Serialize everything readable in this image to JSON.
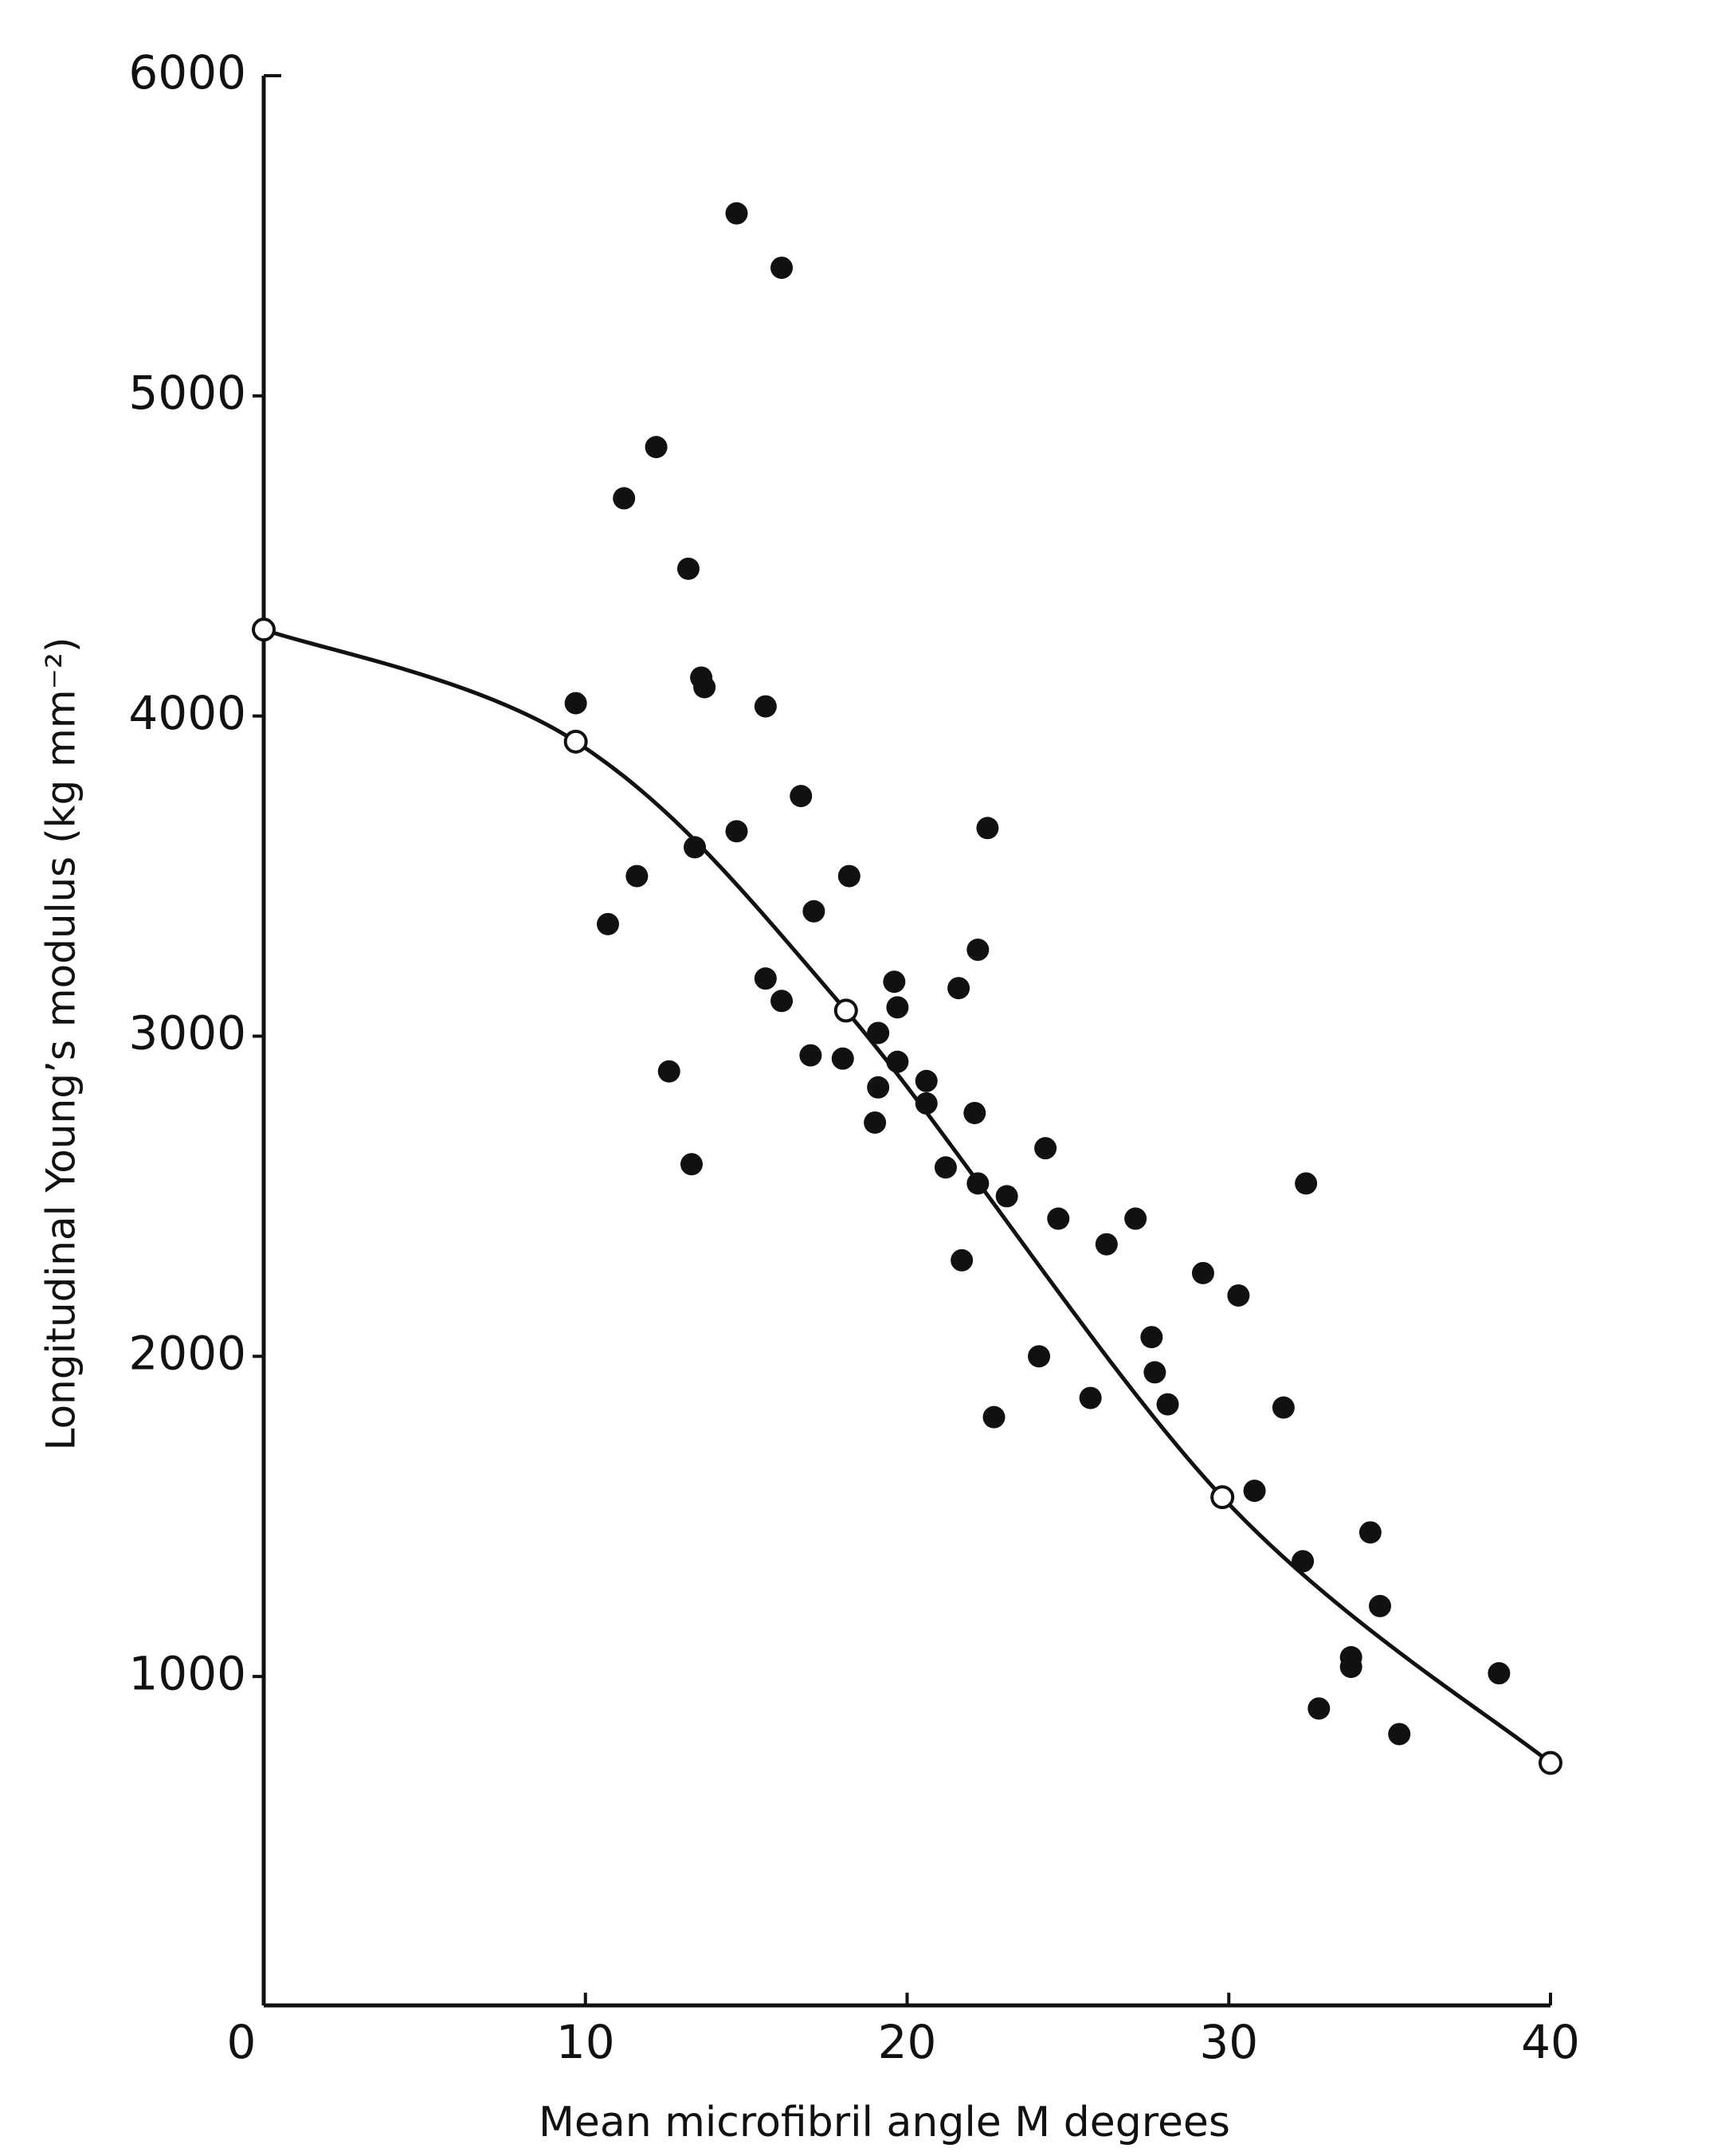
{
  "chart_data": {
    "type": "scatter",
    "xlabel": "Mean microfibril angle M degrees",
    "ylabel": "Longitudinal Young’s modulus (kg mm⁻²)",
    "xlim": [
      0,
      40
    ],
    "xticks": [
      0,
      10,
      20,
      30,
      40
    ],
    "ylim": [
      0,
      6000
    ],
    "yticks": [
      1000,
      2000,
      3000,
      4000,
      5000,
      6000
    ],
    "series": [
      {
        "color": "#111111",
        "marker": "filled",
        "x": [
          9.7,
          11.2,
          12.2,
          13.2,
          13.6,
          13.7,
          14.7,
          16.1,
          15.6,
          14.7,
          13.4,
          11.6,
          10.7,
          16.7,
          18.2,
          17.1,
          22.5,
          22.2,
          15.6,
          16.1,
          19.6,
          21.6,
          19.7,
          19.1,
          17.0,
          18.0,
          19.7,
          20.6,
          19.1,
          20.6,
          22.1,
          19.0,
          12.6,
          13.3,
          21.2,
          22.2,
          23.1,
          24.3,
          24.7,
          27.1,
          26.2,
          21.7,
          32.4,
          29.2,
          30.3,
          27.6,
          24.1,
          27.7,
          25.7,
          28.1,
          22.7,
          31.7,
          30.8,
          34.4,
          32.3,
          34.7,
          33.8,
          33.8,
          38.4,
          32.8,
          35.3
        ],
        "values": [
          4040,
          4680,
          4840,
          4460,
          4120,
          4090,
          5570,
          5400,
          4030,
          3640,
          3590,
          3500,
          3350,
          3750,
          3500,
          3390,
          3650,
          3270,
          3180,
          3110,
          3170,
          3150,
          3090,
          3010,
          2940,
          2930,
          2920,
          2860,
          2840,
          2790,
          2760,
          2730,
          2890,
          2600,
          2590,
          2540,
          2500,
          2650,
          2430,
          2430,
          2350,
          2300,
          2540,
          2260,
          2190,
          2060,
          2000,
          1950,
          1870,
          1850,
          1810,
          1840,
          1580,
          1450,
          1360,
          1220,
          1060,
          1030,
          1010,
          900,
          820
        ]
      },
      {
        "color": "#111111",
        "marker": "open",
        "line": true,
        "x": [
          0,
          9.7,
          18.1,
          29.8,
          40
        ],
        "values": [
          4270,
          3920,
          3080,
          1560,
          730
        ]
      }
    ]
  }
}
